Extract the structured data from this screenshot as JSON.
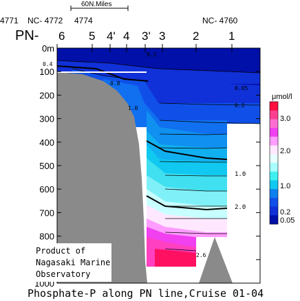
{
  "chart_data": {
    "type": "contour",
    "title": "Phosphate-P along PN line,Cruise 01-04",
    "distance_scale_label": "60N.Miles",
    "line_label": "PN-",
    "stations": [
      {
        "name": "6",
        "id": "NC- 4772"
      },
      {
        "name": "5",
        "id": "4774"
      },
      {
        "name": "4'",
        "id": ""
      },
      {
        "name": "4",
        "id": "4771"
      },
      {
        "name": "3'",
        "id": ""
      },
      {
        "name": "3",
        "id": ""
      },
      {
        "name": "2",
        "id": ""
      },
      {
        "name": "1",
        "id": "NC- 4760"
      }
    ],
    "y_axis": {
      "unit": "0m",
      "ylim": [
        0,
        1000
      ],
      "ticks": [
        0,
        100,
        200,
        300,
        400,
        500,
        600,
        700,
        800,
        900,
        1000
      ],
      "inverted": true
    },
    "contour_levels": [
      0.05,
      0.2,
      0.4,
      0.6,
      0.8,
      1.0,
      1.2,
      1.4,
      1.6,
      1.8,
      2.0,
      2.2,
      2.4,
      2.6
    ],
    "contour_labels": [
      {
        "text": "0.2",
        "depth": 20
      },
      {
        "text": "0.4",
        "depth": 65
      },
      {
        "text": "0.8",
        "depth": 150
      },
      {
        "text": "1.0",
        "depth": 265
      },
      {
        "text": "0.05",
        "depth": 165
      },
      {
        "text": "0.2",
        "depth": 240
      },
      {
        "text": "1.0",
        "depth": 540
      },
      {
        "text": "2.0",
        "depth": 690
      },
      {
        "text": "2.6",
        "depth": 870
      }
    ],
    "colorbar": {
      "label": "μmol/l",
      "ticks": [
        "3.0",
        "2.0",
        "1.0",
        "0.2",
        "0.05"
      ],
      "tick_values": [
        3.0,
        2.0,
        1.0,
        0.2,
        0.05
      ],
      "colors": [
        "#ff1040",
        "#ff3f8f",
        "#ff6fcf",
        "#f040f0",
        "#ff9cff",
        "#ffe8ff",
        "#e8ffff",
        "#a8ffff",
        "#40f0f0",
        "#10c8f0",
        "#1080f0",
        "#1050e8",
        "#1030d8",
        "#0010a8"
      ]
    },
    "note": "Product of\nNagasaki Marine\nObservatory"
  }
}
